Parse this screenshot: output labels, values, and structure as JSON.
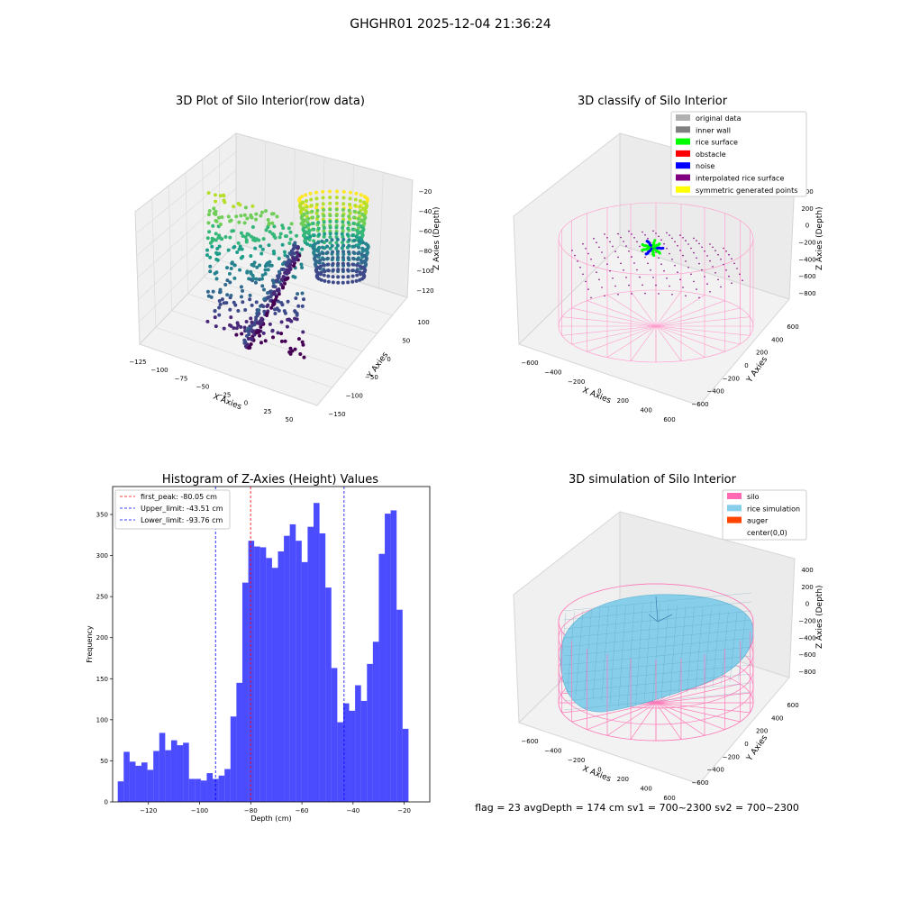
{
  "figure_title": "GHGHR01 2025-12-04 21:36:24",
  "footer_text": "flag = 23   avgDepth = 174 cm  sv1 = 700~2300  sv2 = 700~2300",
  "panel_raw": {
    "title": "3D Plot of Silo Interior(row data)",
    "xlabel": "X Axies",
    "ylabel": "Y Axies",
    "zlabel": "Z Axies (Depth)",
    "xticks": [
      "−125",
      "−100",
      "−75",
      "−50",
      "−25",
      "0",
      "25",
      "50"
    ],
    "yticks": [
      "−150",
      "−100",
      "−50",
      "0",
      "50",
      "100"
    ],
    "zticks": [
      "−20",
      "−40",
      "−60",
      "−80",
      "−100",
      "−120"
    ]
  },
  "panel_classify": {
    "title": "3D classify of Silo Interior",
    "xlabel": "X Axies",
    "ylabel": "Y Axies",
    "zlabel": "Z Axies (Depth)",
    "xticks": [
      "−600",
      "−400",
      "−200",
      "0",
      "200",
      "400",
      "600"
    ],
    "yticks": [
      "−600",
      "−400",
      "−200",
      "0",
      "200",
      "400",
      "600"
    ],
    "zticks": [
      "400",
      "200",
      "0",
      "−200",
      "−400",
      "−600",
      "−800"
    ],
    "legend": [
      {
        "label": "original data",
        "color": "#b0b0b0"
      },
      {
        "label": "inner wall",
        "color": "#808080"
      },
      {
        "label": "rice surface",
        "color": "#00ff00"
      },
      {
        "label": "obstacle",
        "color": "#ff0000"
      },
      {
        "label": "noise",
        "color": "#0000ff"
      },
      {
        "label": "interpolated rice surface",
        "color": "#800080"
      },
      {
        "label": "symmetric generated points",
        "color": "#ffff00"
      }
    ]
  },
  "panel_sim": {
    "title": "3D simulation of Silo Interior",
    "xlabel": "X Axies",
    "ylabel": "Y Axies",
    "zlabel": "Z Axies (Depth)",
    "xticks": [
      "−600",
      "−400",
      "−200",
      "0",
      "200",
      "400",
      "600"
    ],
    "yticks": [
      "−600",
      "−400",
      "−200",
      "0",
      "200",
      "400",
      "600"
    ],
    "zticks": [
      "400",
      "200",
      "0",
      "−200",
      "−400",
      "−600",
      "−800"
    ],
    "legend": [
      {
        "label": "silo",
        "color": "#ff69b4"
      },
      {
        "label": "rice simulation",
        "color": "#87ceeb"
      },
      {
        "label": "auger",
        "color": "#ff4500"
      },
      {
        "label": "center(0,0)",
        "color": "#ffffff"
      }
    ]
  },
  "chart_data": {
    "type": "bar",
    "title": "Histogram of Z-Axies (Height) Values",
    "xlabel": "Depth (cm)",
    "ylabel": "Frequency",
    "xlim": [
      -134,
      -10
    ],
    "ylim": [
      0,
      384
    ],
    "xticks": [
      -120,
      -100,
      -80,
      -60,
      -40,
      -20
    ],
    "yticks": [
      0,
      50,
      100,
      150,
      200,
      250,
      300,
      350
    ],
    "bin_start": -132.0,
    "bin_width": 2.32,
    "values": [
      25,
      61,
      49,
      44,
      48,
      39,
      62,
      84,
      63,
      75,
      69,
      72,
      28,
      28,
      26,
      35,
      28,
      32,
      40,
      104,
      145,
      267,
      318,
      311,
      310,
      297,
      285,
      305,
      324,
      338,
      318,
      292,
      335,
      364,
      327,
      261,
      163,
      97,
      120,
      111,
      142,
      123,
      168,
      195,
      302,
      351,
      355,
      234,
      89
    ],
    "bar_color": "#0000ff",
    "vlines": [
      {
        "x": -80.05,
        "color": "#ff0000",
        "label": "first_peak: -80.05 cm"
      },
      {
        "x": -43.51,
        "color": "#0000ff",
        "label": "Upper_limit: -43.51 cm"
      },
      {
        "x": -93.76,
        "color": "#0000ff",
        "label": "Lower_limit: -93.76 cm"
      }
    ],
    "legend_position": "upper-left"
  }
}
